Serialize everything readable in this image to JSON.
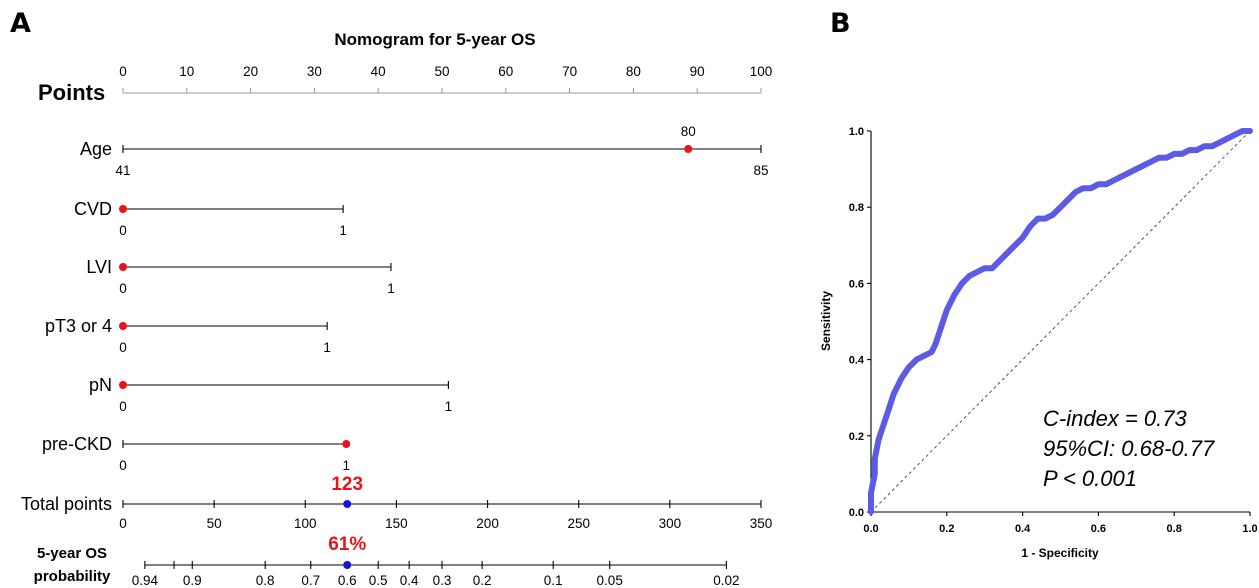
{
  "panels": {
    "a": "A",
    "b": "B"
  },
  "chart_data": [
    {
      "type": "nomogram",
      "title": "Nomogram for 5-year OS",
      "points_axis": {
        "label": "Points",
        "ticks": [
          "0",
          "10",
          "20",
          "30",
          "40",
          "50",
          "60",
          "70",
          "80",
          "90",
          "100"
        ],
        "range": [
          0,
          100
        ]
      },
      "rows": [
        {
          "label": "Age",
          "min_label": "41",
          "max_label": "85",
          "min_points": 0,
          "max_points": 100,
          "selected_value": "80",
          "selected_points": 88.6
        },
        {
          "label": "CVD",
          "min_label": "0",
          "max_label": "1",
          "min_points": 0,
          "max_points": 34.5,
          "selected_value": "0",
          "selected_points": 0
        },
        {
          "label": "LVI",
          "min_label": "0",
          "max_label": "1",
          "min_points": 0,
          "max_points": 42,
          "selected_value": "0",
          "selected_points": 0
        },
        {
          "label": "pT3 or 4",
          "min_label": "0",
          "max_label": "1",
          "min_points": 0,
          "max_points": 32,
          "selected_value": "0",
          "selected_points": 0
        },
        {
          "label": "pN",
          "min_label": "0",
          "max_label": "1",
          "min_points": 0,
          "max_points": 51,
          "selected_value": "0",
          "selected_points": 0
        },
        {
          "label": "pre-CKD",
          "min_label": "0",
          "max_label": "1",
          "min_points": 0,
          "max_points": 35,
          "selected_value": "1",
          "selected_points": 35
        }
      ],
      "total_points": {
        "label": "Total points",
        "ticks": [
          "0",
          "50",
          "100",
          "150",
          "200",
          "250",
          "300",
          "350"
        ],
        "range": [
          0,
          350
        ],
        "value": 123,
        "value_label": "123"
      },
      "probability": {
        "label_line1": "5-year OS",
        "label_line2": "probability",
        "ticks": [
          {
            "label": "0.94",
            "total": 12
          },
          {
            "label": "",
            "total": 28
          },
          {
            "label": "0.9",
            "total": 38
          },
          {
            "label": "0.8",
            "total": 78
          },
          {
            "label": "0.7",
            "total": 103
          },
          {
            "label": "0.6",
            "total": 123
          },
          {
            "label": "0.5",
            "total": 140
          },
          {
            "label": "0.4",
            "total": 157
          },
          {
            "label": "0.3",
            "total": 175
          },
          {
            "label": "0.2",
            "total": 197
          },
          {
            "label": "0.1",
            "total": 236
          },
          {
            "label": "0.05",
            "total": 267
          },
          {
            "label": "0.02",
            "total": 331
          }
        ],
        "value": 0.61,
        "value_label": "61%"
      }
    },
    {
      "type": "line",
      "xlabel": "1 - Specificity",
      "ylabel": "Sensitivity",
      "xlim": [
        0,
        1
      ],
      "ylim": [
        0,
        1
      ],
      "xticks": [
        "0.0",
        "0.2",
        "0.4",
        "0.6",
        "0.8",
        "1.0"
      ],
      "yticks": [
        "0.0",
        "0.2",
        "0.4",
        "0.6",
        "0.8",
        "1.0"
      ],
      "reference_line": "diagonal",
      "series": [
        {
          "color": "#5b5be6",
          "x": [
            0,
            0,
            0.01,
            0.01,
            0.02,
            0.03,
            0.04,
            0.05,
            0.06,
            0.07,
            0.08,
            0.1,
            0.12,
            0.14,
            0.16,
            0.17,
            0.18,
            0.19,
            0.2,
            0.21,
            0.22,
            0.24,
            0.26,
            0.28,
            0.3,
            0.32,
            0.34,
            0.36,
            0.38,
            0.4,
            0.42,
            0.44,
            0.46,
            0.48,
            0.5,
            0.52,
            0.54,
            0.56,
            0.58,
            0.6,
            0.62,
            0.64,
            0.66,
            0.68,
            0.7,
            0.72,
            0.74,
            0.76,
            0.78,
            0.8,
            0.82,
            0.84,
            0.86,
            0.88,
            0.9,
            0.92,
            0.94,
            0.96,
            0.98,
            1.0
          ],
          "y": [
            0,
            0.05,
            0.1,
            0.14,
            0.19,
            0.22,
            0.25,
            0.28,
            0.31,
            0.33,
            0.35,
            0.38,
            0.4,
            0.41,
            0.42,
            0.44,
            0.47,
            0.5,
            0.53,
            0.55,
            0.57,
            0.6,
            0.62,
            0.63,
            0.64,
            0.64,
            0.66,
            0.68,
            0.7,
            0.72,
            0.75,
            0.77,
            0.77,
            0.78,
            0.8,
            0.82,
            0.84,
            0.85,
            0.85,
            0.86,
            0.86,
            0.87,
            0.88,
            0.89,
            0.9,
            0.91,
            0.92,
            0.93,
            0.93,
            0.94,
            0.94,
            0.95,
            0.95,
            0.96,
            0.96,
            0.97,
            0.98,
            0.99,
            1.0,
            1.0
          ]
        }
      ],
      "annotations": [
        "C-index = 0.73",
        "95%CI: 0.68-0.77",
        "P < 0.001"
      ]
    }
  ],
  "colors": {
    "selected": "#e8141b",
    "total_marker": "#1515d8",
    "roc": "#5b5be6"
  }
}
